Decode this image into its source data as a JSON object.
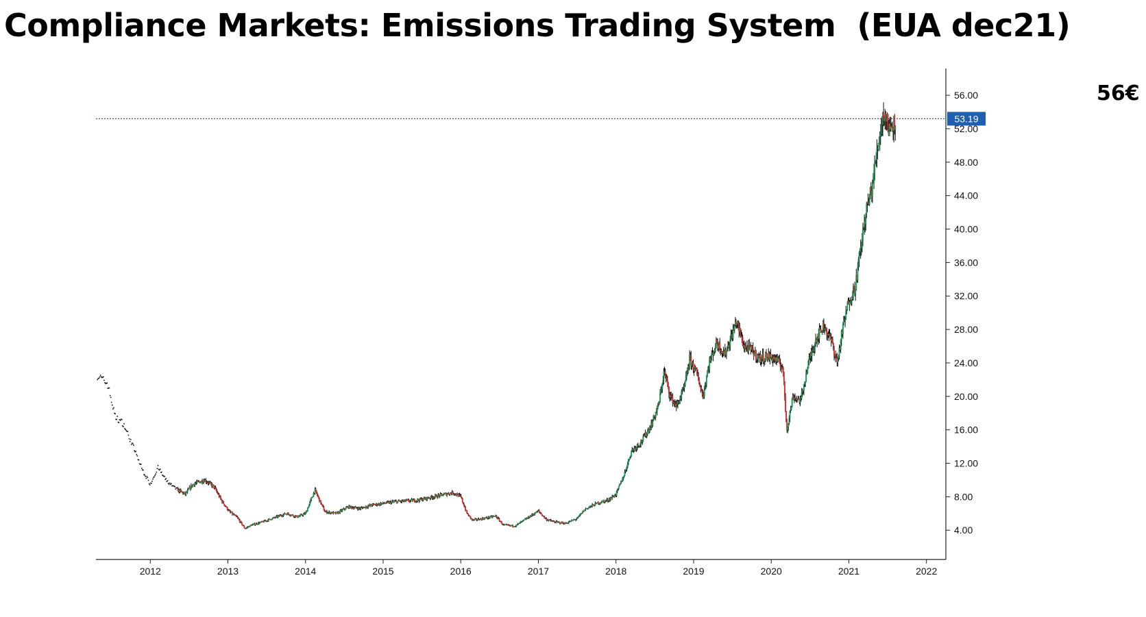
{
  "title": "Compliance Markets: Emissions Trading System  (EUA dec21)",
  "callout": "56€",
  "chart_data": {
    "type": "candlestick",
    "title": "Compliance Markets: Emissions Trading System  (EUA dec21)",
    "xlabel": "",
    "ylabel": "",
    "x_ticks": [
      "2012",
      "2013",
      "2014",
      "2015",
      "2016",
      "2017",
      "2018",
      "2019",
      "2020",
      "2021",
      "2022"
    ],
    "y_ticks": [
      "4.00",
      "8.00",
      "12.00",
      "16.00",
      "20.00",
      "24.00",
      "28.00",
      "32.00",
      "36.00",
      "40.00",
      "44.00",
      "48.00",
      "52.00",
      "56.00"
    ],
    "xlim": [
      2011.3,
      2022.25
    ],
    "ylim": [
      0.5,
      59.2
    ],
    "last_price": "53.19",
    "last_price_value": 53.19,
    "grid": false,
    "legend": "none",
    "colors": {
      "up": "#1a9e57",
      "down": "#e03030",
      "neutral": "#111111",
      "last_price_box": "#1f5fb0",
      "last_price_line": "#1f5fb0"
    },
    "series": [
      {
        "points": [
          [
            2011.32,
            22.5
          ],
          [
            2011.45,
            21.5
          ],
          [
            2011.55,
            17.5
          ],
          [
            2011.65,
            16.8
          ],
          [
            2011.78,
            14.0
          ],
          [
            2011.9,
            11.2
          ],
          [
            2012.0,
            9.5
          ],
          [
            2012.1,
            11.5
          ],
          [
            2012.2,
            10.0
          ],
          [
            2012.32,
            9.0
          ],
          [
            2012.45,
            8.3
          ],
          [
            2012.55,
            9.5
          ],
          [
            2012.7,
            10.0
          ],
          [
            2012.82,
            9.2
          ],
          [
            2012.92,
            7.5
          ],
          [
            2013.02,
            6.2
          ],
          [
            2013.12,
            5.5
          ],
          [
            2013.22,
            4.2
          ],
          [
            2013.3,
            4.6
          ],
          [
            2013.45,
            5.0
          ],
          [
            2013.6,
            5.5
          ],
          [
            2013.75,
            6.0
          ],
          [
            2013.9,
            5.6
          ],
          [
            2014.0,
            6.0
          ],
          [
            2014.12,
            8.8
          ],
          [
            2014.25,
            6.2
          ],
          [
            2014.4,
            6.0
          ],
          [
            2014.55,
            6.8
          ],
          [
            2014.7,
            6.6
          ],
          [
            2014.85,
            7.0
          ],
          [
            2015.0,
            7.2
          ],
          [
            2015.15,
            7.4
          ],
          [
            2015.3,
            7.5
          ],
          [
            2015.45,
            7.6
          ],
          [
            2015.6,
            7.9
          ],
          [
            2015.75,
            8.2
          ],
          [
            2015.9,
            8.5
          ],
          [
            2016.0,
            8.0
          ],
          [
            2016.08,
            6.0
          ],
          [
            2016.15,
            5.2
          ],
          [
            2016.3,
            5.4
          ],
          [
            2016.45,
            5.7
          ],
          [
            2016.55,
            4.6
          ],
          [
            2016.7,
            4.5
          ],
          [
            2016.85,
            5.4
          ],
          [
            2017.0,
            6.3
          ],
          [
            2017.1,
            5.3
          ],
          [
            2017.2,
            5.0
          ],
          [
            2017.35,
            4.8
          ],
          [
            2017.5,
            5.4
          ],
          [
            2017.6,
            6.5
          ],
          [
            2017.75,
            7.2
          ],
          [
            2017.9,
            7.6
          ],
          [
            2018.0,
            8.3
          ],
          [
            2018.1,
            10.5
          ],
          [
            2018.2,
            13.5
          ],
          [
            2018.32,
            14.5
          ],
          [
            2018.45,
            16.5
          ],
          [
            2018.55,
            19.0
          ],
          [
            2018.62,
            23.0
          ],
          [
            2018.7,
            20.0
          ],
          [
            2018.78,
            18.8
          ],
          [
            2018.88,
            21.0
          ],
          [
            2018.95,
            24.5
          ],
          [
            2019.05,
            22.5
          ],
          [
            2019.12,
            20.0
          ],
          [
            2019.2,
            24.0
          ],
          [
            2019.3,
            26.5
          ],
          [
            2019.4,
            25.0
          ],
          [
            2019.5,
            27.5
          ],
          [
            2019.55,
            29.0
          ],
          [
            2019.65,
            26.0
          ],
          [
            2019.75,
            25.5
          ],
          [
            2019.85,
            24.5
          ],
          [
            2019.95,
            24.8
          ],
          [
            2020.05,
            24.5
          ],
          [
            2020.15,
            23.5
          ],
          [
            2020.2,
            16.0
          ],
          [
            2020.28,
            20.0
          ],
          [
            2020.38,
            19.5
          ],
          [
            2020.48,
            24.0
          ],
          [
            2020.58,
            27.0
          ],
          [
            2020.68,
            28.5
          ],
          [
            2020.78,
            26.5
          ],
          [
            2020.85,
            24.0
          ],
          [
            2020.92,
            28.0
          ],
          [
            2021.0,
            31.5
          ],
          [
            2021.08,
            33.0
          ],
          [
            2021.15,
            37.5
          ],
          [
            2021.22,
            42.0
          ],
          [
            2021.3,
            45.0
          ],
          [
            2021.38,
            50.5
          ],
          [
            2021.45,
            54.0
          ],
          [
            2021.52,
            52.0
          ],
          [
            2021.6,
            53.19
          ]
        ]
      }
    ]
  }
}
